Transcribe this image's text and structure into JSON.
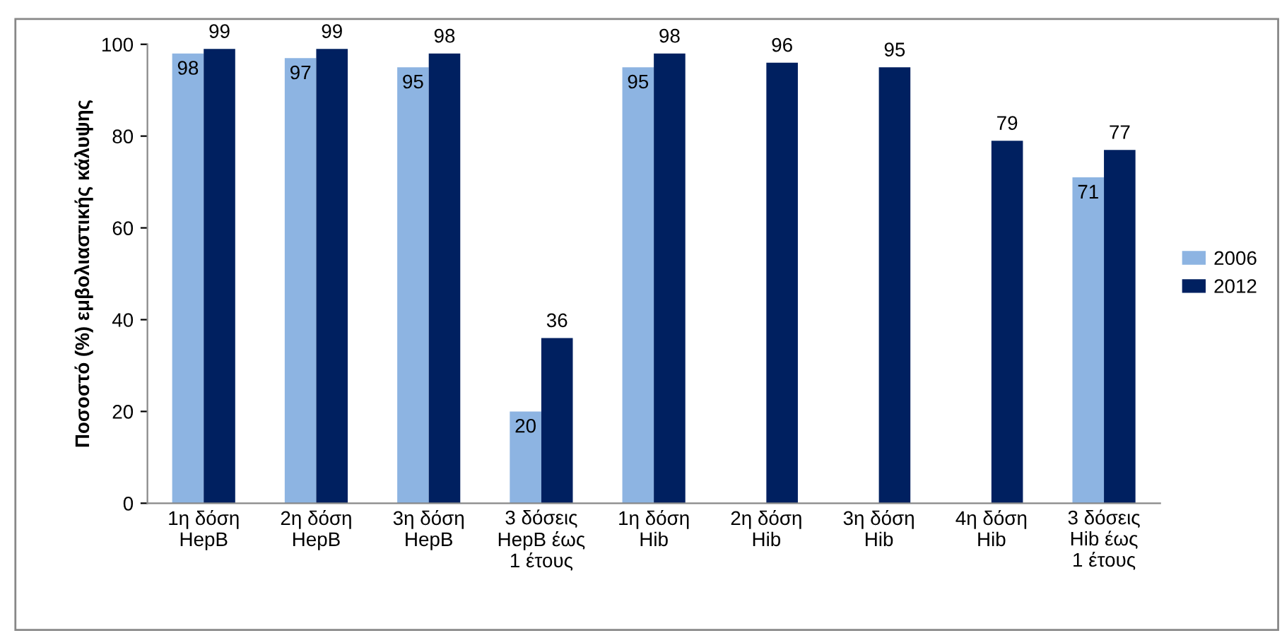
{
  "chart_data": {
    "type": "bar",
    "ylabel": "Ποσοστό (%) εμβολιαστικής κάλυψης",
    "categories": [
      "1η δόση\nHepB",
      "2η δόση\nHepB",
      "3η δόση\nHepB",
      "3 δόσεις\nHepB έως\n1 έτους",
      "1η δόση\nHib",
      "2η δόση\nHib",
      "3η δόση\nHib",
      "4η δόση\nHib",
      "3 δόσεις\nHib έως\n1 έτους"
    ],
    "series": [
      {
        "name": "2006",
        "color": "#8db4e2",
        "values": [
          98,
          97,
          95,
          20,
          95,
          null,
          null,
          null,
          71
        ]
      },
      {
        "name": "2012",
        "color": "#002060",
        "values": [
          99,
          99,
          98,
          36,
          98,
          96,
          95,
          79,
          77
        ]
      }
    ],
    "ylim": [
      0,
      100
    ],
    "yticks": [
      0,
      20,
      40,
      60,
      80,
      100
    ],
    "grid": false,
    "legend": "right",
    "data_labels": true
  }
}
